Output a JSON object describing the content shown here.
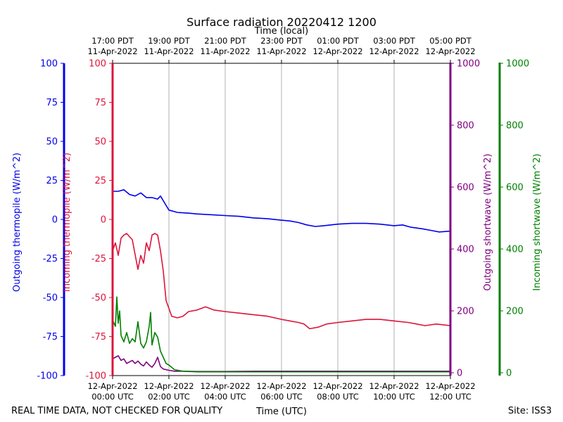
{
  "chart_data": {
    "type": "line",
    "title": "Surface radiation 20220412 1200",
    "xlabel": "Time (UTC)",
    "top_xlabel": "Time (local)",
    "x_unit": "hours since 12-Apr-2022 00:00 UTC",
    "xlim": [
      0,
      12
    ],
    "grid": "vertical only",
    "bottom_ticks": [
      {
        "x": 0,
        "line1": "12-Apr-2022",
        "line2": "00:00 UTC"
      },
      {
        "x": 2,
        "line1": "12-Apr-2022",
        "line2": "02:00 UTC"
      },
      {
        "x": 4,
        "line1": "12-Apr-2022",
        "line2": "04:00 UTC"
      },
      {
        "x": 6,
        "line1": "12-Apr-2022",
        "line2": "06:00 UTC"
      },
      {
        "x": 8,
        "line1": "12-Apr-2022",
        "line2": "08:00 UTC"
      },
      {
        "x": 10,
        "line1": "12-Apr-2022",
        "line2": "10:00 UTC"
      },
      {
        "x": 12,
        "line1": "12-Apr-2022",
        "line2": "12:00 UTC"
      }
    ],
    "top_ticks": [
      {
        "x": 0,
        "line1": "17:00 PDT",
        "line2": "11-Apr-2022"
      },
      {
        "x": 2,
        "line1": "19:00 PDT",
        "line2": "11-Apr-2022"
      },
      {
        "x": 4,
        "line1": "21:00 PDT",
        "line2": "11-Apr-2022"
      },
      {
        "x": 6,
        "line1": "23:00 PDT",
        "line2": "11-Apr-2022"
      },
      {
        "x": 8,
        "line1": "01:00 PDT",
        "line2": "12-Apr-2022"
      },
      {
        "x": 10,
        "line1": "03:00 PDT",
        "line2": "12-Apr-2022"
      },
      {
        "x": 12,
        "line1": "05:00 PDT",
        "line2": "12-Apr-2022"
      }
    ],
    "axes": [
      {
        "key": "out_thermo",
        "label": "Outgoing thermopile (W/m^2)",
        "color": "#0000ee",
        "ylim": [
          -100,
          100
        ],
        "ticks": [
          "-100",
          "-75",
          "-50",
          "-25",
          "0",
          "25",
          "50",
          "75",
          "100"
        ],
        "side": "left-outer"
      },
      {
        "key": "in_thermo",
        "label": "Incoming thermopile (W/m^2)",
        "color": "#dc143c",
        "ylim": [
          -100,
          100
        ],
        "ticks": [
          "-100",
          "-75",
          "-50",
          "-25",
          "0",
          "25",
          "50",
          "75",
          "100"
        ],
        "side": "left-inner"
      },
      {
        "key": "out_sw",
        "label": "Outgoing shortwave (W/m^2)",
        "color": "#800080",
        "ylim": [
          0,
          1000
        ],
        "ticks": [
          "0",
          "200",
          "400",
          "600",
          "800",
          "1000"
        ],
        "side": "right-inner"
      },
      {
        "key": "in_sw",
        "label": "Incoming shortwave (W/m^2)",
        "color": "#008000",
        "ylim": [
          0,
          1000
        ],
        "ticks": [
          "0",
          "200",
          "400",
          "600",
          "800",
          "1000"
        ],
        "side": "right-outer"
      }
    ],
    "series": [
      {
        "name": "Outgoing thermopile",
        "axis": "out_thermo",
        "color": "#0000ee",
        "x": [
          0,
          0.2,
          0.4,
          0.6,
          0.8,
          1.0,
          1.2,
          1.4,
          1.6,
          1.7,
          1.9,
          2.0,
          2.3,
          2.7,
          3.0,
          3.5,
          4.0,
          4.5,
          5.0,
          5.5,
          6.0,
          6.3,
          6.6,
          6.9,
          7.2,
          7.5,
          8.0,
          8.5,
          9.0,
          9.5,
          10.0,
          10.3,
          10.6,
          11.0,
          11.3,
          11.6,
          12.0
        ],
        "y": [
          18,
          18,
          19,
          16,
          15,
          17,
          14,
          14,
          13,
          15,
          9,
          6,
          4.5,
          4,
          3.5,
          3,
          2.5,
          2,
          1,
          0.5,
          -0.5,
          -1,
          -2,
          -3.5,
          -4.5,
          -4,
          -3,
          -2.5,
          -2.5,
          -3,
          -4,
          -3.5,
          -5,
          -6,
          -7,
          -8,
          -7.5
        ]
      },
      {
        "name": "Incoming thermopile",
        "axis": "in_thermo",
        "color": "#dc143c",
        "x": [
          0,
          0.1,
          0.2,
          0.3,
          0.4,
          0.5,
          0.7,
          0.9,
          1.0,
          1.1,
          1.2,
          1.3,
          1.4,
          1.5,
          1.6,
          1.7,
          1.8,
          1.9,
          2.0,
          2.1,
          2.3,
          2.5,
          2.7,
          3.0,
          3.3,
          3.6,
          4.0,
          4.5,
          5.0,
          5.5,
          6.0,
          6.3,
          6.6,
          6.8,
          7.0,
          7.3,
          7.6,
          8.0,
          8.5,
          9.0,
          9.5,
          10.0,
          10.5,
          10.8,
          11.1,
          11.5,
          12.0
        ],
        "y": [
          -20,
          -15,
          -23,
          -12,
          -10,
          -9,
          -13,
          -32,
          -23,
          -28,
          -15,
          -20,
          -10,
          -9,
          -10,
          -20,
          -33,
          -52,
          -57,
          -62,
          -63,
          -62,
          -59,
          -58,
          -56,
          -58,
          -59,
          -60,
          -61,
          -62,
          -64,
          -65,
          -66,
          -67,
          -70,
          -69,
          -67,
          -66,
          -65,
          -64,
          -64,
          -65,
          -66,
          -67,
          -68,
          -67,
          -68
        ]
      },
      {
        "name": "Outgoing shortwave",
        "axis": "out_sw",
        "color": "#800080",
        "x": [
          0,
          0.1,
          0.2,
          0.3,
          0.4,
          0.5,
          0.6,
          0.7,
          0.8,
          0.9,
          1.0,
          1.1,
          1.2,
          1.3,
          1.4,
          1.5,
          1.6,
          1.7,
          1.8,
          2.0,
          2.2,
          2.5,
          3.0,
          4.0,
          5.0,
          6.0,
          7.0,
          8.0,
          9.0,
          10.0,
          11.0,
          12.0
        ],
        "y": [
          45,
          50,
          55,
          40,
          45,
          30,
          35,
          40,
          30,
          38,
          28,
          22,
          35,
          25,
          18,
          30,
          50,
          20,
          12,
          8,
          5,
          5,
          4,
          4,
          5,
          5,
          5,
          5,
          5,
          5,
          5,
          5
        ]
      },
      {
        "name": "Incoming shortwave",
        "axis": "in_sw",
        "color": "#008000",
        "x": [
          0,
          0.1,
          0.15,
          0.2,
          0.25,
          0.3,
          0.4,
          0.5,
          0.6,
          0.7,
          0.8,
          0.9,
          1.0,
          1.1,
          1.2,
          1.3,
          1.35,
          1.4,
          1.5,
          1.6,
          1.7,
          1.8,
          1.9,
          2.0,
          2.2,
          2.5,
          3.0,
          4.0,
          6.0,
          8.0,
          10.0,
          12.0
        ],
        "y": [
          170,
          150,
          245,
          160,
          200,
          120,
          100,
          130,
          95,
          110,
          100,
          165,
          95,
          80,
          100,
          150,
          195,
          90,
          130,
          115,
          70,
          50,
          30,
          25,
          10,
          5,
          3,
          3,
          3,
          3,
          3,
          3
        ]
      }
    ]
  },
  "footer": {
    "left_note": "REAL TIME DATA, NOT CHECKED FOR QUALITY",
    "right_note": "Site: ISS3"
  }
}
